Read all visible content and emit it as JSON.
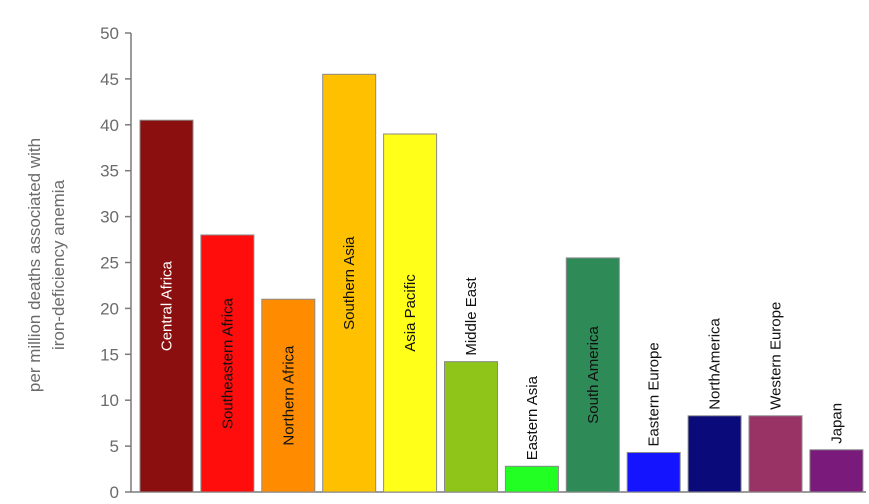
{
  "chart_data": {
    "type": "bar",
    "title": "",
    "xlabel": "",
    "ylabel": [
      "per million deaths associated with",
      "iron-deficiency anemia"
    ],
    "ylim": [
      0,
      50
    ],
    "yticks": [
      0,
      5,
      10,
      15,
      20,
      25,
      30,
      35,
      40,
      45,
      50
    ],
    "grid": false,
    "legend": "none",
    "categories": [
      "Central Africa",
      "Southeastern Africa",
      "Northern Africa",
      "Southern Asia",
      "Asia Pacific",
      "Middle East",
      "Eastern Asia",
      "South America",
      "Eastern Europe",
      "NorthAmerica",
      "Western Europe",
      "Japan"
    ],
    "values": [
      40.5,
      28,
      21,
      45.5,
      39,
      14.2,
      2.8,
      25.5,
      4.3,
      8.3,
      8.3,
      4.6
    ],
    "colors": [
      "#8b0f0f",
      "#ff0d0d",
      "#ff8c00",
      "#ffc000",
      "#ffff1a",
      "#8fc418",
      "#22ff22",
      "#2e8b57",
      "#1414ff",
      "#0a0a7a",
      "#993366",
      "#7a1a7a"
    ],
    "label_colors": [
      "#ffffff",
      "#111111",
      "#111111",
      "#111111",
      "#111111",
      "#111111",
      "#111111",
      "#111111",
      "#111111",
      "#111111",
      "#111111",
      "#111111"
    ],
    "label_inside": [
      true,
      true,
      true,
      true,
      true,
      false,
      false,
      true,
      false,
      false,
      false,
      false
    ]
  }
}
